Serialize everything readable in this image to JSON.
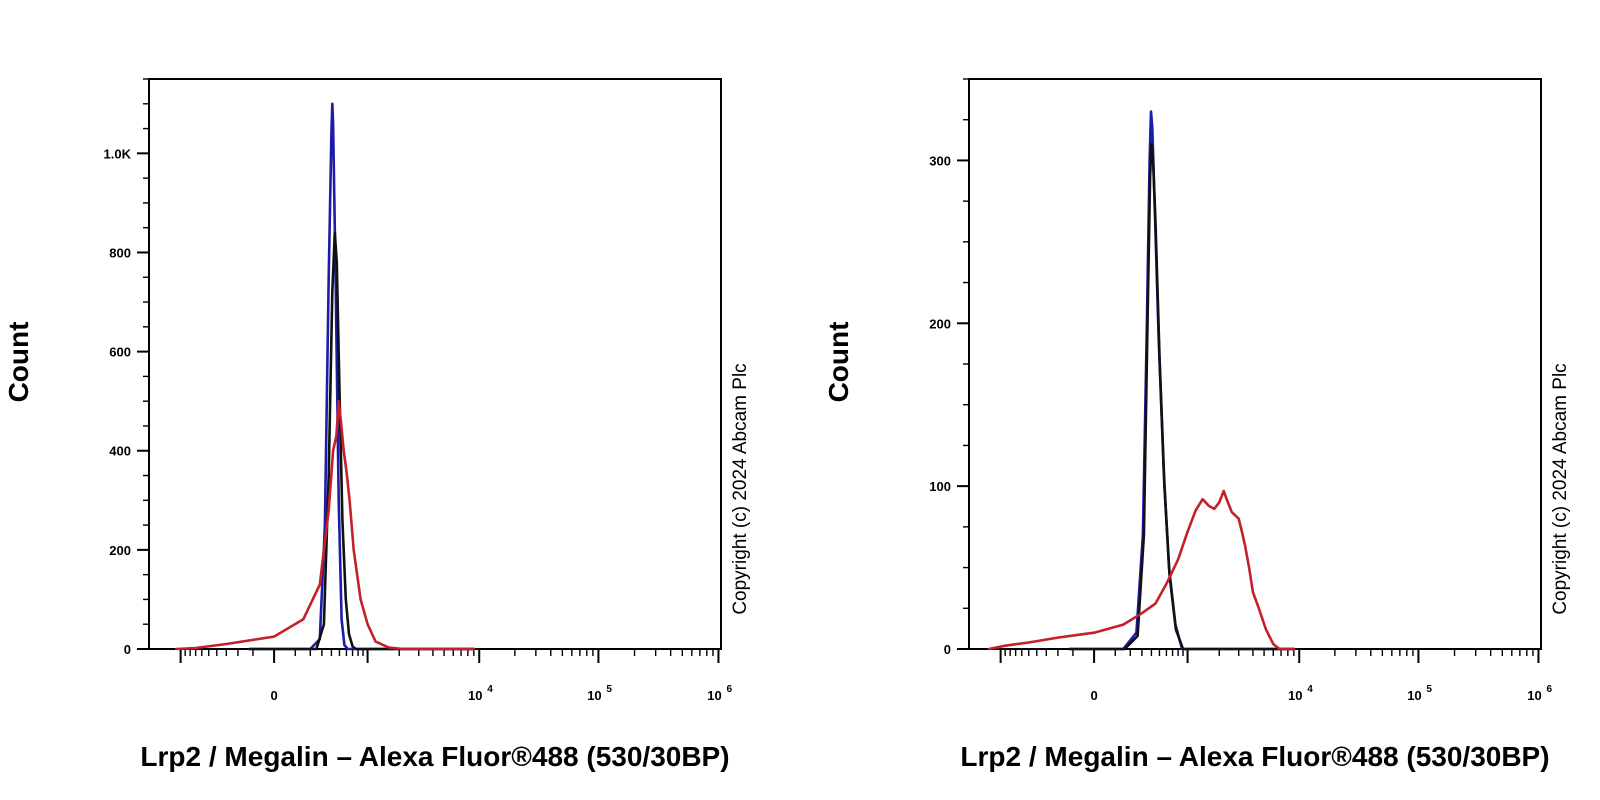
{
  "chart_data": [
    {
      "type": "line",
      "title": "",
      "xlabel": "Lrp2 / Megalin – Alexa Fluor®488 (530/30BP)",
      "ylabel": "Count",
      "copyright": "Copyright (c) 2024 Abcam Plc",
      "x_scale": "biexponential",
      "ylim": [
        0,
        1150
      ],
      "yticks": [
        0,
        200,
        400,
        600,
        800,
        1000
      ],
      "ytick_labels": [
        "0",
        "200",
        "400",
        "600",
        "800",
        "1.0K"
      ],
      "xticks": [
        {
          "base": "0",
          "exp": ""
        },
        {
          "base": "10",
          "exp": "4"
        },
        {
          "base": "10",
          "exp": "5"
        },
        {
          "base": "10",
          "exp": "6"
        }
      ],
      "grid": false,
      "series": [
        {
          "color": "#1c1ca8",
          "points": [
            [
              -120,
              0
            ],
            [
              200,
              0
            ],
            [
              280,
              20
            ],
            [
              330,
              250
            ],
            [
              370,
              750
            ],
            [
              400,
              1040
            ],
            [
              410,
              1100
            ],
            [
              420,
              1060
            ],
            [
              450,
              750
            ],
            [
              490,
              300
            ],
            [
              530,
              60
            ],
            [
              570,
              8
            ],
            [
              620,
              0
            ],
            [
              9000,
              0
            ]
          ]
        },
        {
          "color": "#111111",
          "points": [
            [
              -120,
              0
            ],
            [
              250,
              0
            ],
            [
              320,
              50
            ],
            [
              370,
              350
            ],
            [
              410,
              720
            ],
            [
              440,
              840
            ],
            [
              465,
              780
            ],
            [
              500,
              520
            ],
            [
              540,
              260
            ],
            [
              590,
              100
            ],
            [
              640,
              30
            ],
            [
              700,
              5
            ],
            [
              760,
              0
            ],
            [
              9000,
              0
            ]
          ]
        },
        {
          "color": "#c4202a",
          "points": [
            [
              -1100,
              0
            ],
            [
              -700,
              2
            ],
            [
              -300,
              10
            ],
            [
              0,
              25
            ],
            [
              150,
              60
            ],
            [
              280,
              130
            ],
            [
              370,
              280
            ],
            [
              420,
              400
            ],
            [
              460,
              430
            ],
            [
              490,
              500
            ],
            [
              520,
              460
            ],
            [
              560,
              400
            ],
            [
              600,
              360
            ],
            [
              650,
              300
            ],
            [
              720,
              200
            ],
            [
              850,
              100
            ],
            [
              1000,
              50
            ],
            [
              1200,
              15
            ],
            [
              1600,
              3
            ],
            [
              2200,
              0
            ],
            [
              9000,
              0
            ]
          ]
        }
      ]
    },
    {
      "type": "line",
      "title": "",
      "xlabel": "Lrp2 / Megalin – Alexa Fluor®488 (530/30BP)",
      "ylabel": "Count",
      "copyright": "Copyright (c) 2024 Abcam Plc",
      "x_scale": "biexponential",
      "ylim": [
        0,
        350
      ],
      "yticks": [
        0,
        100,
        200,
        300
      ],
      "ytick_labels": [
        "0",
        "100",
        "200",
        "300"
      ],
      "xticks": [
        {
          "base": "0",
          "exp": ""
        },
        {
          "base": "10",
          "exp": "4"
        },
        {
          "base": "10",
          "exp": "5"
        },
        {
          "base": "10",
          "exp": "6"
        }
      ],
      "grid": false,
      "series": [
        {
          "color": "#1c1ca8",
          "points": [
            [
              -120,
              0
            ],
            [
              150,
              0
            ],
            [
              250,
              10
            ],
            [
              310,
              70
            ],
            [
              350,
              200
            ],
            [
              380,
              300
            ],
            [
              395,
              330
            ],
            [
              410,
              320
            ],
            [
              440,
              270
            ],
            [
              490,
              190
            ],
            [
              560,
              110
            ],
            [
              640,
              50
            ],
            [
              750,
              15
            ],
            [
              880,
              0
            ],
            [
              9000,
              0
            ]
          ]
        },
        {
          "color": "#111111",
          "points": [
            [
              -120,
              0
            ],
            [
              160,
              0
            ],
            [
              260,
              8
            ],
            [
              320,
              70
            ],
            [
              360,
              210
            ],
            [
              385,
              290
            ],
            [
              400,
              310
            ],
            [
              420,
              300
            ],
            [
              450,
              260
            ],
            [
              500,
              180
            ],
            [
              570,
              100
            ],
            [
              650,
              45
            ],
            [
              760,
              12
            ],
            [
              900,
              0
            ],
            [
              9000,
              0
            ]
          ]
        },
        {
          "color": "#c4202a",
          "points": [
            [
              -1300,
              0
            ],
            [
              -900,
              2
            ],
            [
              -500,
              4
            ],
            [
              -200,
              7
            ],
            [
              0,
              10
            ],
            [
              150,
              15
            ],
            [
              300,
              22
            ],
            [
              450,
              28
            ],
            [
              600,
              40
            ],
            [
              800,
              55
            ],
            [
              1000,
              72
            ],
            [
              1200,
              85
            ],
            [
              1400,
              92
            ],
            [
              1600,
              88
            ],
            [
              1800,
              86
            ],
            [
              2000,
              90
            ],
            [
              2200,
              97
            ],
            [
              2400,
              90
            ],
            [
              2600,
              84
            ],
            [
              2800,
              82
            ],
            [
              3000,
              80
            ],
            [
              3200,
              72
            ],
            [
              3400,
              64
            ],
            [
              3700,
              50
            ],
            [
              4000,
              35
            ],
            [
              4500,
              25
            ],
            [
              5200,
              12
            ],
            [
              6000,
              3
            ],
            [
              6800,
              0
            ],
            [
              9000,
              0
            ]
          ]
        }
      ]
    }
  ]
}
